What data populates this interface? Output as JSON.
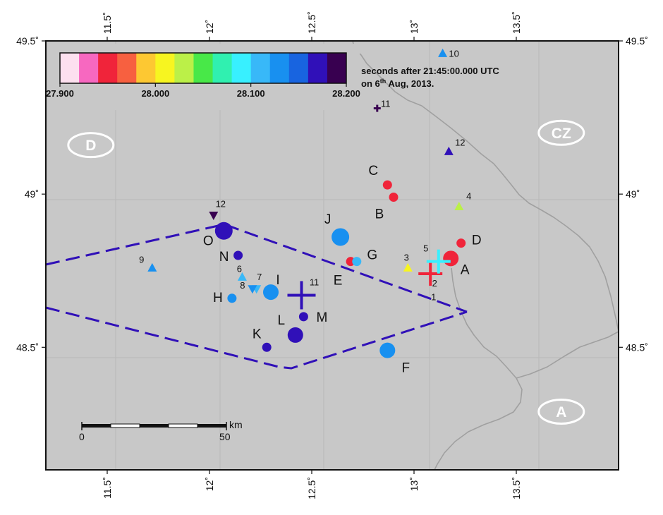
{
  "map": {
    "lon_range": [
      11.2,
      14.0
    ],
    "lat_range": [
      48.1,
      49.5
    ],
    "lon_ticks": [
      "11.5˚",
      "12˚",
      "12.5˚",
      "13˚",
      "13.5˚"
    ],
    "lat_ticks": [
      "49.5˚",
      "49˚",
      "48.5˚"
    ],
    "background_color": "#c8c8c8",
    "border_color": "#a0a0a0",
    "grid": true
  },
  "colorbar": {
    "colors": [
      "#fde0ef",
      "#f768c0",
      "#f0243a",
      "#f76040",
      "#fdc832",
      "#f7f520",
      "#bbf048",
      "#48e848",
      "#30f0b0",
      "#38f0ff",
      "#38b8f8",
      "#1890f0",
      "#1864e0",
      "#3010b8",
      "#380050"
    ],
    "labels": [
      "27.900",
      "28.000",
      "28.100",
      "28.200"
    ],
    "caption_line1": "seconds after 21:45:00.000 UTC",
    "caption_line2_prefix": "on 6",
    "caption_line2_sup": "th",
    "caption_line2_suffix": " Aug, 2013."
  },
  "countries": [
    {
      "code": "D",
      "lon": 11.42,
      "lat": 49.16
    },
    {
      "code": "CZ",
      "lon": 13.72,
      "lat": 49.2
    },
    {
      "code": "A",
      "lon": 13.72,
      "lat": 48.29
    }
  ],
  "events": [
    {
      "label": "A",
      "lon": 13.18,
      "lat": 48.79,
      "size": "medium",
      "color": "#f0243a"
    },
    {
      "label": "B",
      "lon": 12.9,
      "lat": 48.99,
      "size": "small",
      "color": "#f0243a"
    },
    {
      "label": "C",
      "lon": 12.87,
      "lat": 49.03,
      "size": "small",
      "color": "#f0243a"
    },
    {
      "label": "D",
      "lon": 13.23,
      "lat": 48.84,
      "size": "small",
      "color": "#f0243a"
    },
    {
      "label": "E",
      "lon": 12.69,
      "lat": 48.78,
      "size": "small",
      "color": "#f0243a"
    },
    {
      "label": "F",
      "lon": 12.87,
      "lat": 48.49,
      "size": "medium",
      "color": "#1890f0"
    },
    {
      "label": "G",
      "lon": 12.72,
      "lat": 48.78,
      "size": "small",
      "color": "#38b8f8"
    },
    {
      "label": "H",
      "lon": 12.11,
      "lat": 48.66,
      "size": "small",
      "color": "#1890f0"
    },
    {
      "label": "I",
      "lon": 12.3,
      "lat": 48.68,
      "size": "medium",
      "color": "#1890f0"
    },
    {
      "label": "J",
      "lon": 12.64,
      "lat": 48.86,
      "size": "large",
      "color": "#1890f0"
    },
    {
      "label": "K",
      "lon": 12.28,
      "lat": 48.5,
      "size": "small",
      "color": "#3010b8"
    },
    {
      "label": "L",
      "lon": 12.42,
      "lat": 48.54,
      "size": "medium",
      "color": "#3010b8"
    },
    {
      "label": "M",
      "lon": 12.46,
      "lat": 48.6,
      "size": "small",
      "color": "#3010b8"
    },
    {
      "label": "N",
      "lon": 12.14,
      "lat": 48.8,
      "size": "small",
      "color": "#3010b8"
    },
    {
      "label": "O",
      "lon": 12.07,
      "lat": 48.88,
      "size": "large",
      "color": "#3010b8"
    }
  ],
  "stations": [
    {
      "num": "1",
      "lon": 13.13,
      "lat": 48.64,
      "marker": "none",
      "color": "#111111"
    },
    {
      "num": "2",
      "lon": 13.08,
      "lat": 48.74,
      "marker": "plus",
      "color": "#f0243a"
    },
    {
      "num": "3",
      "lon": 12.97,
      "lat": 48.76,
      "marker": "triangle",
      "color": "#f7f520"
    },
    {
      "num": "4",
      "lon": 13.22,
      "lat": 48.96,
      "marker": "triangle",
      "color": "#bbf048"
    },
    {
      "num": "5",
      "lon": 13.12,
      "lat": 48.78,
      "marker": "plus",
      "color": "#38f0ff"
    },
    {
      "num": "6",
      "lon": 12.16,
      "lat": 48.73,
      "marker": "triangle",
      "color": "#38b8f8"
    },
    {
      "num": "7",
      "lon": 12.23,
      "lat": 48.69,
      "marker": "inverted-triangle",
      "color": "#38b8f8"
    },
    {
      "num": "8",
      "lon": 12.21,
      "lat": 48.69,
      "marker": "inverted-triangle",
      "color": "#1890f0"
    },
    {
      "num": "9",
      "lon": 11.72,
      "lat": 48.76,
      "marker": "triangle",
      "color": "#1890f0"
    },
    {
      "num": "10",
      "lon": 13.14,
      "lat": 49.46,
      "marker": "triangle",
      "color": "#1890f0"
    },
    {
      "num": "11",
      "lon": 12.45,
      "lat": 48.67,
      "marker": "plus-large",
      "color": "#3010b8"
    },
    {
      "num": "11",
      "lon": 12.82,
      "lat": 49.28,
      "marker": "plus-small",
      "color": "#380050"
    },
    {
      "num": "12",
      "lon": 13.17,
      "lat": 49.14,
      "marker": "triangle",
      "color": "#3010b8"
    },
    {
      "num": "12",
      "lon": 12.02,
      "lat": 48.93,
      "marker": "inverted-triangle",
      "color": "#380050"
    }
  ],
  "scale_bar": {
    "labels": [
      "0",
      "50"
    ],
    "unit": "km"
  }
}
